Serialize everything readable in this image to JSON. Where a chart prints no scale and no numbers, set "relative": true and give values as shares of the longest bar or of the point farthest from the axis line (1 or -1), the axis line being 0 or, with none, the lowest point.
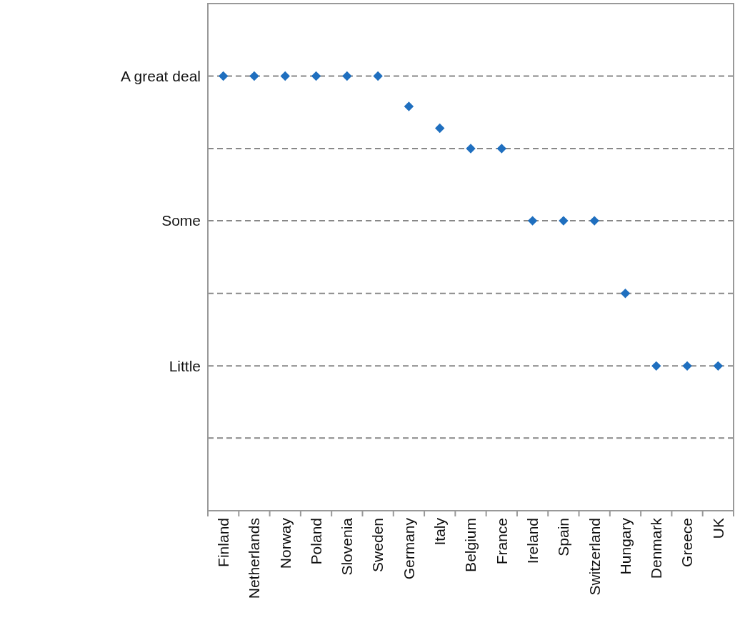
{
  "chart_data": {
    "type": "scatter",
    "relative": true,
    "categories": [
      "Finland",
      "Netherlands",
      "Norway",
      "Poland",
      "Slovenia",
      "Sweden",
      "Germany",
      "Italy",
      "Belgium",
      "France",
      "Ireland",
      "Spain",
      "Switzerland",
      "Hungary",
      "Denmark",
      "Greece",
      "UK"
    ],
    "values": [
      1,
      1,
      1,
      1,
      1,
      1,
      0.93,
      0.88,
      0.833,
      0.833,
      0.667,
      0.667,
      0.667,
      0.5,
      0.333,
      0.333,
      0.333
    ],
    "color": "#1f6fbf",
    "marker": "diamond",
    "ref_lines": [
      {
        "axis": "y",
        "value": 1,
        "label": "A great deal",
        "line_style": "dashed"
      },
      {
        "axis": "y",
        "value": 0.833,
        "line_style": "dashed"
      },
      {
        "axis": "y",
        "value": 0.667,
        "label": "Some",
        "line_style": "dashed"
      },
      {
        "axis": "y",
        "value": 0.5,
        "line_style": "dashed"
      },
      {
        "axis": "y",
        "value": 0.333,
        "label": "Little",
        "line_style": "dashed"
      },
      {
        "axis": "y",
        "value": 0.167,
        "line_style": "dashed"
      }
    ]
  }
}
